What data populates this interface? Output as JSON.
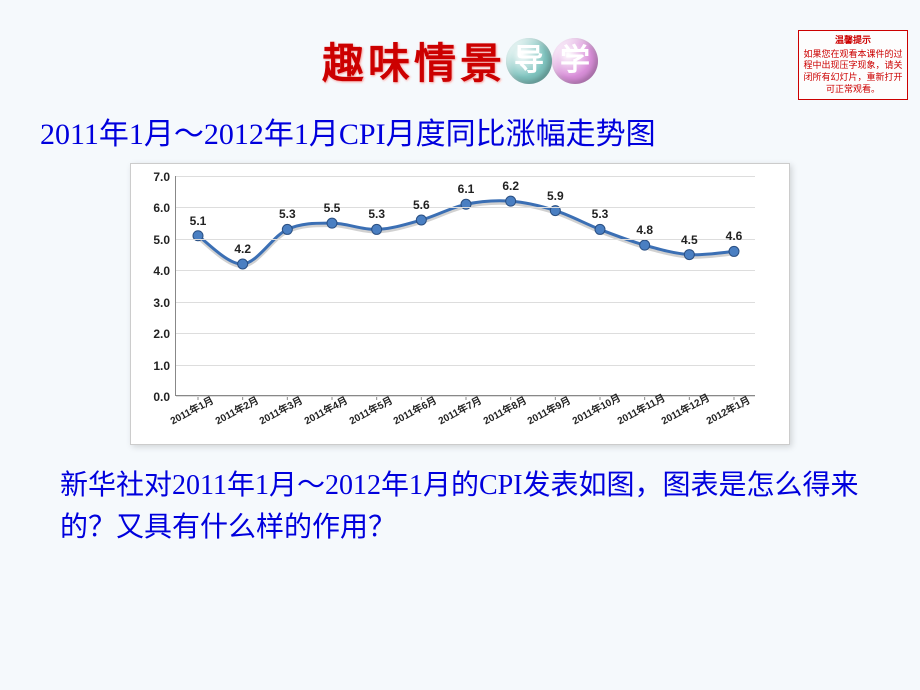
{
  "banner": {
    "left": "趣味情景",
    "circle1": {
      "char": "导",
      "bg": "#7fc4bf"
    },
    "circle2": {
      "char": "学",
      "bg": "#d98fd9"
    }
  },
  "tip": {
    "title": "温馨提示",
    "body": "如果您在观看本课件的过程中出现压字现象，请关闭所有幻灯片，重新打开可正常观看。"
  },
  "subtitle": "2011年1月～2012年1月CPI月度同比涨幅走势图",
  "chart": {
    "type": "line",
    "ylim": [
      0.0,
      7.0
    ],
    "ytick_step": 1.0,
    "yticks": [
      "0.0",
      "1.0",
      "2.0",
      "3.0",
      "4.0",
      "5.0",
      "6.0",
      "7.0"
    ],
    "line_color": "#3b6fb4",
    "line_width": 3,
    "marker_fill": "#4a7fc2",
    "marker_stroke": "#2a4f82",
    "marker_radius": 5,
    "grid_color": "#dddddd",
    "axis_color": "#888888",
    "background_color": "#ffffff",
    "label_fontsize": 12,
    "xlabel_fontsize": 10,
    "xlabel_rotation": -28,
    "categories": [
      "2011年1月",
      "2011年2月",
      "2011年3月",
      "2011年4月",
      "2011年5月",
      "2011年6月",
      "2011年7月",
      "2011年8月",
      "2011年9月",
      "2011年10月",
      "2011年11月",
      "2011年12月",
      "2012年1月"
    ],
    "values": [
      5.1,
      4.2,
      5.3,
      5.5,
      5.3,
      5.6,
      6.1,
      6.2,
      5.9,
      5.3,
      4.8,
      4.5,
      4.6
    ]
  },
  "bottom": "新华社对2011年1月～2012年1月的CPI发表如图，图表是怎么得来的？又具有什么样的作用？",
  "colors": {
    "page_bg": "#f5f9fc",
    "banner_red": "#cc0000",
    "subtitle_blue": "#0000dd"
  }
}
